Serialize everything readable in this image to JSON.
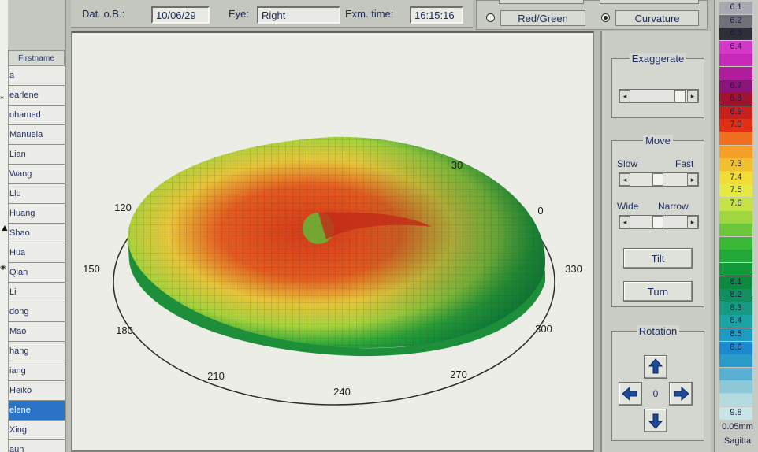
{
  "patients": {
    "column_header": "Firstname",
    "items": [
      "a",
      "earlene",
      "ohamed",
      "Manuela",
      "Lian",
      "Wang",
      "Liu",
      "Huang",
      "Shao",
      "Hua",
      "Qian",
      "Li",
      "dong",
      "Mao",
      "hang",
      "iang",
      "Heiko",
      "elene",
      "Xing",
      "aun"
    ],
    "selected_index": 17
  },
  "header": {
    "dob_label": "Dat. o.B.:",
    "dob_value": "10/06/29",
    "eye_label": "Eye:",
    "eye_value": "Right",
    "exm_label": "Exm. time:",
    "exm_value": "16:15:16"
  },
  "modes": {
    "red_green_label": "Red/Green",
    "curvature_label": "Curvature",
    "selected": "Curvature"
  },
  "view3d": {
    "angle_labels": [
      "30",
      "0",
      "330",
      "300",
      "270",
      "240",
      "210",
      "180",
      "150",
      "120"
    ]
  },
  "controls": {
    "exaggerate_title": "Exaggerate",
    "move_title": "Move",
    "slow_label": "Slow",
    "fast_label": "Fast",
    "wide_label": "Wide",
    "narrow_label": "Narrow",
    "tilt_label": "Tilt",
    "turn_label": "Turn",
    "rotation_title": "Rotation",
    "rotation_value": "0"
  },
  "scale": {
    "entries": [
      {
        "label": "6.1",
        "color": "#a8a8b0"
      },
      {
        "label": "6.2",
        "color": "#707078"
      },
      {
        "label": "6.3",
        "color": "#2e2e36"
      },
      {
        "label": "6.4",
        "color": "#d438c8"
      },
      {
        "label": "",
        "color": "#c828b8"
      },
      {
        "label": "",
        "color": "#b01c9c"
      },
      {
        "label": "6.7",
        "color": "#8a1478"
      },
      {
        "label": "6.8",
        "color": "#a01430"
      },
      {
        "label": "6.9",
        "color": "#c8201c"
      },
      {
        "label": "7.0",
        "color": "#e23014"
      },
      {
        "label": "",
        "color": "#f07020"
      },
      {
        "label": "",
        "color": "#f4a028"
      },
      {
        "label": "7.3",
        "color": "#f0c030"
      },
      {
        "label": "7.4",
        "color": "#f2dc38"
      },
      {
        "label": "7.5",
        "color": "#e6e844"
      },
      {
        "label": "7.6",
        "color": "#c6e244"
      },
      {
        "label": "",
        "color": "#a0d640"
      },
      {
        "label": "",
        "color": "#6cc83a"
      },
      {
        "label": "",
        "color": "#3cb838"
      },
      {
        "label": "",
        "color": "#22a838"
      },
      {
        "label": "",
        "color": "#129a3a"
      },
      {
        "label": "8.1",
        "color": "#0c8a40"
      },
      {
        "label": "8.2",
        "color": "#128e60"
      },
      {
        "label": "8.3",
        "color": "#169a82"
      },
      {
        "label": "8.4",
        "color": "#1aa4a4"
      },
      {
        "label": "8.5",
        "color": "#1c9cc0"
      },
      {
        "label": "8.6",
        "color": "#1c88d0"
      },
      {
        "label": "",
        "color": "#2a9ac8"
      },
      {
        "label": "",
        "color": "#5ab0d0"
      },
      {
        "label": "",
        "color": "#8cc8d8"
      },
      {
        "label": "",
        "color": "#b4dce0"
      },
      {
        "label": "9.8",
        "color": "#c8e4e4"
      }
    ],
    "step_label": "0.05mm",
    "mode_label": "Sagitta"
  }
}
